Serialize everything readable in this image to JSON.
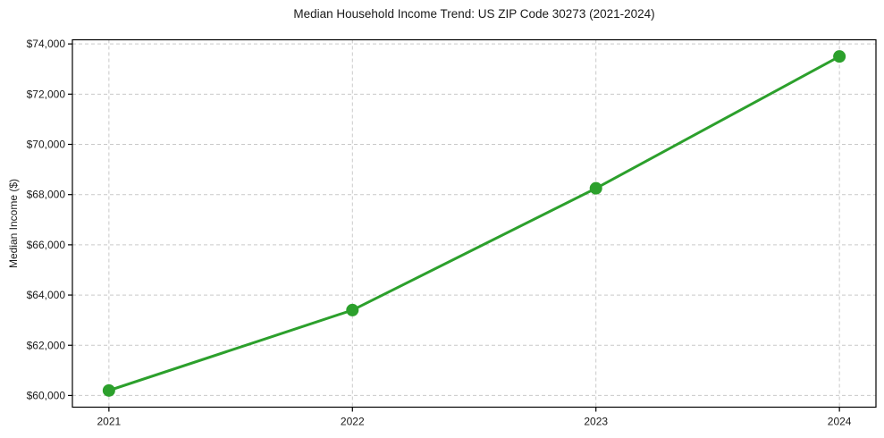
{
  "title": "Median Household Income Trend: US ZIP Code 30273 (2021-2024)",
  "chart_data": {
    "type": "line",
    "title": "Median Household Income Trend: US ZIP Code 30273 (2021-2024)",
    "xlabel": "",
    "ylabel": "Median Income ($)",
    "x": [
      2021,
      2022,
      2023,
      2024
    ],
    "values": [
      60200,
      63400,
      68250,
      73500
    ],
    "x_tick_labels": [
      "2021",
      "2022",
      "2023",
      "2024"
    ],
    "y_ticks": [
      60000,
      62000,
      64000,
      66000,
      68000,
      70000,
      72000,
      74000
    ],
    "y_tick_labels": [
      "$60,000",
      "$62,000",
      "$64,000",
      "$66,000",
      "$68,000",
      "$70,000",
      "$72,000",
      "$74,000"
    ],
    "xlim": [
      2020.85,
      2024.15
    ],
    "ylim": [
      59535,
      74165
    ],
    "grid": true,
    "grid_style": "dashed",
    "legend": "none",
    "line_color": "#2ca02c",
    "marker": "circle",
    "marker_color": "#2ca02c",
    "grid_color": "#c9c9c9",
    "spine_color": "#000000",
    "text_color": "#1a1a1a",
    "background_color": "#ffffff"
  }
}
